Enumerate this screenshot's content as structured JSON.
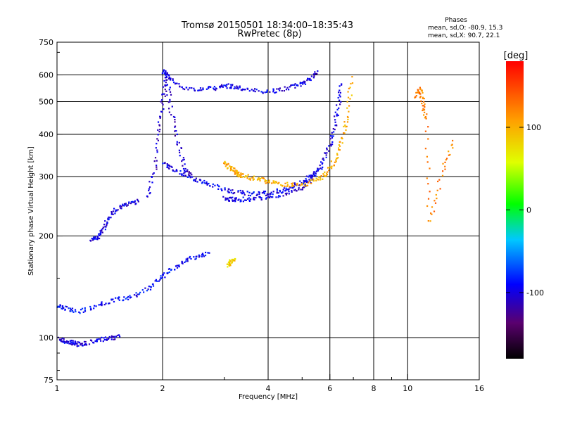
{
  "chart_data": {
    "type": "scatter",
    "title": "Tromsø 20150501 18:34:00–18:35:43",
    "subtitle": "RwPretec (8p)",
    "xlabel": "Frequency [MHz]",
    "ylabel": "Stationary phase Virtual Height [km]",
    "x_scale": "log",
    "y_scale": "log",
    "xlim": [
      1,
      16
    ],
    "ylim": [
      75,
      750
    ],
    "x_ticks": [
      1,
      2,
      4,
      6,
      8,
      10,
      16
    ],
    "y_ticks": [
      75,
      100,
      200,
      300,
      400,
      500,
      600,
      750
    ],
    "grid": true,
    "stats": {
      "heading": "Phases",
      "line1": "mean, sd,O:  -80.9, 15.3",
      "line2": "mean, sd,X:  90.7, 22.1"
    },
    "colorbar": {
      "label": "[deg]",
      "ticks": [
        "100",
        "0",
        "-100"
      ],
      "range": [
        -180,
        180
      ]
    },
    "traces": [
      {
        "x": [
          2.0,
          2.05,
          2.2,
          2.5,
          2.8,
          3.0,
          3.2,
          3.5,
          4.0,
          4.5,
          4.9,
          5.2,
          5.5
        ],
        "y": [
          620,
          600,
          560,
          545,
          550,
          560,
          555,
          545,
          535,
          550,
          565,
          585,
          615
        ],
        "phase": -100
      },
      {
        "x": [
          3.0,
          3.1,
          3.3,
          3.6,
          4.0,
          4.5,
          5.0,
          5.3,
          5.6,
          5.9,
          6.1,
          6.3,
          6.45
        ],
        "y": [
          260,
          258,
          258,
          258,
          262,
          268,
          280,
          295,
          320,
          360,
          410,
          480,
          580
        ],
        "phase": -100
      },
      {
        "x": [
          2.0,
          2.1,
          2.3,
          2.5,
          2.7,
          3.0,
          3.3,
          3.6,
          4.0,
          4.4,
          4.8,
          5.2,
          5.5
        ],
        "y": [
          330,
          320,
          305,
          295,
          285,
          275,
          270,
          268,
          270,
          275,
          285,
          298,
          315
        ],
        "phase": -95
      },
      {
        "x": [
          3.0,
          3.1,
          3.2,
          3.3,
          3.5,
          3.8,
          4.1,
          4.5,
          5.0,
          5.5,
          5.9,
          6.2,
          6.5,
          6.7,
          6.9
        ],
        "y": [
          330,
          320,
          312,
          305,
          300,
          295,
          290,
          285,
          285,
          295,
          310,
          340,
          390,
          460,
          600
        ],
        "phase": 100
      },
      {
        "x": [
          1.0,
          1.05,
          1.15,
          1.3,
          1.45,
          1.6,
          1.8,
          1.95,
          2.1,
          2.3,
          2.5,
          2.7
        ],
        "y": [
          125,
          123,
          120,
          125,
          130,
          132,
          140,
          150,
          160,
          170,
          175,
          180
        ],
        "phase": -90
      },
      {
        "x": [
          1.0,
          1.05,
          1.1,
          1.15,
          1.2,
          1.3,
          1.4,
          1.5
        ],
        "y": [
          100,
          98,
          97,
          96,
          97,
          99,
          100,
          101
        ],
        "phase": -100
      },
      {
        "x": [
          1.25,
          1.3,
          1.35,
          1.4,
          1.5,
          1.6,
          1.7
        ],
        "y": [
          195,
          200,
          210,
          230,
          245,
          250,
          255
        ],
        "phase": -100
      },
      {
        "x": [
          1.8,
          1.9,
          1.95,
          2.0,
          2.05,
          2.1,
          2.2,
          2.3,
          2.4
        ],
        "y": [
          260,
          320,
          420,
          520,
          600,
          480,
          380,
          320,
          300
        ],
        "phase": -110
      },
      {
        "x": [
          3.05,
          3.1,
          3.2
        ],
        "y": [
          165,
          168,
          172
        ],
        "phase": 80
      },
      {
        "x": [
          10.5,
          10.8,
          11.0,
          11.2,
          11.5,
          12.5,
          13.5
        ],
        "y": [
          520,
          550,
          500,
          450,
          220,
          310,
          390
        ],
        "phase": 120
      }
    ]
  }
}
